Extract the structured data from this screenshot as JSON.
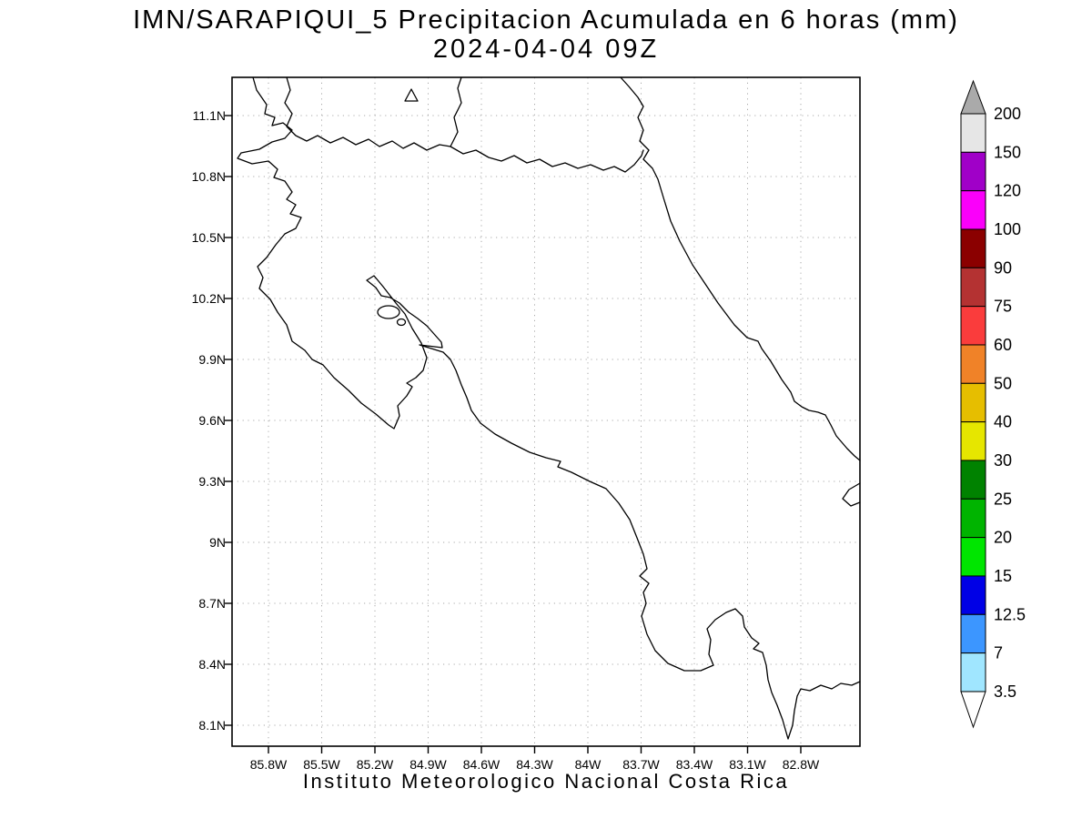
{
  "title": {
    "line1": "IMN/SARAPIQUI_5 Precipitacion Acumulada en 6 horas (mm)",
    "line2": "2024-04-04 09Z"
  },
  "footer": "Instituto Meteorologico Nacional Costa Rica",
  "axes": {
    "y_ticks": [
      "11.1N",
      "10.8N",
      "10.5N",
      "10.2N",
      "9.9N",
      "9.6N",
      "9.3N",
      "9N",
      "8.7N",
      "8.4N",
      "8.1N"
    ],
    "x_ticks": [
      "85.8W",
      "85.5W",
      "85.2W",
      "84.9W",
      "84.6W",
      "84.3W",
      "84W",
      "83.7W",
      "83.4W",
      "83.1W",
      "82.8W"
    ]
  },
  "colorbar": {
    "units": "mm",
    "labels": [
      "200",
      "150",
      "120",
      "100",
      "90",
      "75",
      "60",
      "50",
      "40",
      "30",
      "25",
      "20",
      "15",
      "12.5",
      "7",
      "3.5"
    ],
    "levels": [
      200,
      150,
      120,
      100,
      90,
      75,
      60,
      50,
      40,
      30,
      25,
      20,
      15,
      12.5,
      7,
      3.5
    ],
    "cell_colors": [
      "#e6e6e6",
      "#a000c8",
      "#fa00fa",
      "#8b0000",
      "#b43232",
      "#fa3c3c",
      "#f08228",
      "#e6be00",
      "#e6e600",
      "#008200",
      "#00b400",
      "#00e600",
      "#0000e6",
      "#3c96ff",
      "#a0e6ff"
    ],
    "over_arrow_color": "#aaaaaa",
    "under_arrow_color": "#ffffff"
  }
}
